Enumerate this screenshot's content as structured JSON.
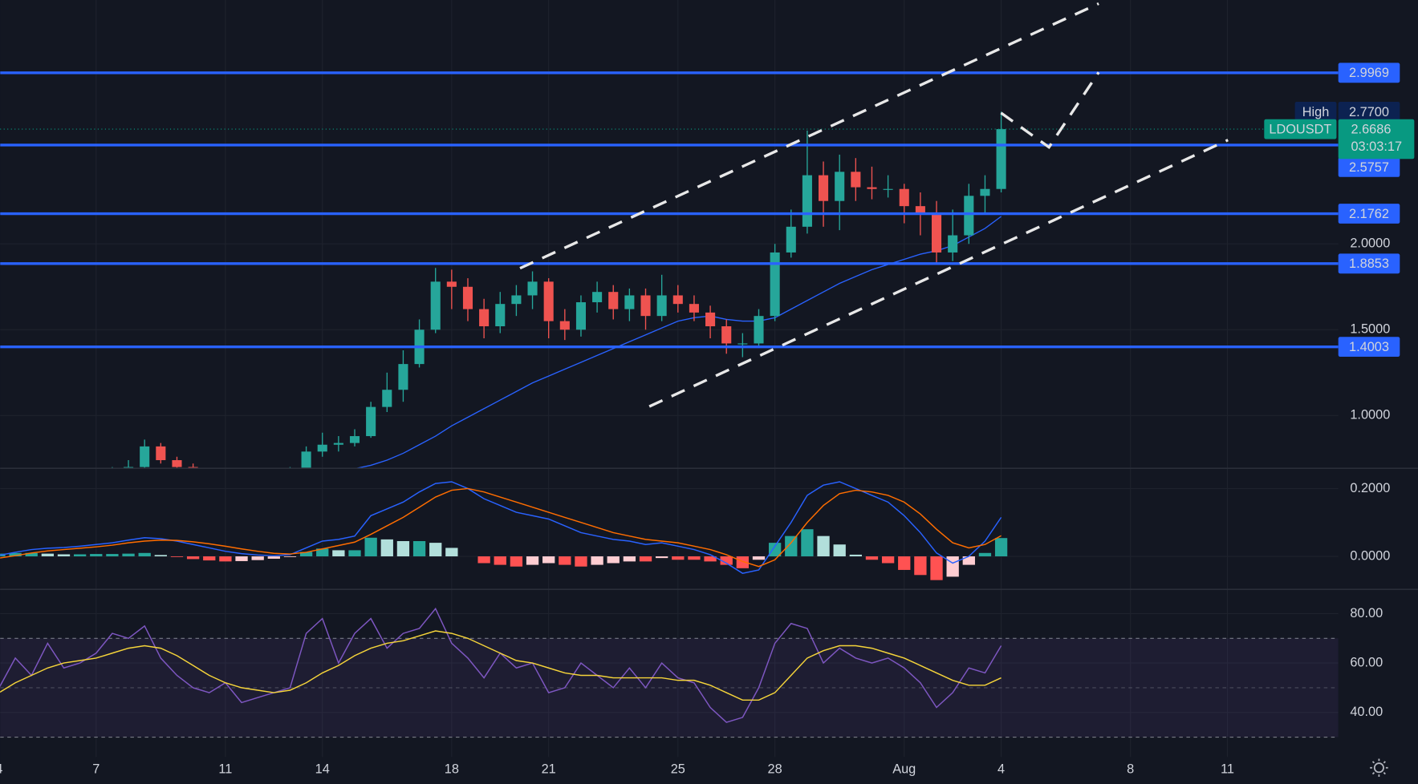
{
  "chart_data": [
    {
      "type": "candlestick",
      "symbol": "LDOUSDT",
      "x": [
        4,
        4.5,
        5,
        5.5,
        6,
        6.5,
        7,
        7.5,
        8,
        8.5,
        9,
        9.5,
        10,
        10.5,
        11,
        11.5,
        12,
        12.5,
        13,
        13.5,
        14,
        14.5,
        15,
        15.5,
        16,
        16.5,
        17,
        17.5,
        18,
        18.5,
        19,
        19.5,
        20,
        20.5,
        21,
        21.5,
        22,
        22.5,
        23,
        23.5,
        24,
        24.5,
        25,
        25.5,
        26,
        26.5,
        27,
        27.5,
        28,
        28.5,
        29,
        29.5,
        30,
        30.5,
        31,
        31.5,
        32,
        32.5,
        33,
        33.5,
        34,
        34.5,
        35
      ],
      "open": [
        0.61,
        0.62,
        0.63,
        0.61,
        0.64,
        0.63,
        0.66,
        0.65,
        0.68,
        0.7,
        0.82,
        0.74,
        0.7,
        0.66,
        0.64,
        0.62,
        0.6,
        0.62,
        0.63,
        0.66,
        0.79,
        0.83,
        0.84,
        0.88,
        1.05,
        1.15,
        1.3,
        1.5,
        1.78,
        1.75,
        1.62,
        1.52,
        1.65,
        1.7,
        1.78,
        1.55,
        1.5,
        1.66,
        1.72,
        1.62,
        1.7,
        1.58,
        1.7,
        1.65,
        1.6,
        1.52,
        1.42,
        1.42,
        1.58,
        1.95,
        2.1,
        2.4,
        2.25,
        2.42,
        2.33,
        2.32,
        2.32,
        2.22,
        2.18,
        1.95,
        2.05,
        2.28,
        2.32
      ],
      "high": [
        0.64,
        0.65,
        0.64,
        0.66,
        0.66,
        0.68,
        0.68,
        0.7,
        0.74,
        0.86,
        0.84,
        0.76,
        0.72,
        0.68,
        0.66,
        0.64,
        0.64,
        0.65,
        0.7,
        0.82,
        0.9,
        0.88,
        0.92,
        1.08,
        1.25,
        1.38,
        1.56,
        1.86,
        1.85,
        1.8,
        1.68,
        1.72,
        1.76,
        1.84,
        1.8,
        1.62,
        1.7,
        1.78,
        1.76,
        1.74,
        1.74,
        1.82,
        1.76,
        1.7,
        1.64,
        1.56,
        1.48,
        1.62,
        2.0,
        2.2,
        2.66,
        2.48,
        2.52,
        2.5,
        2.45,
        2.4,
        2.35,
        2.3,
        2.25,
        2.2,
        2.35,
        2.4,
        2.77
      ],
      "low": [
        0.59,
        0.6,
        0.59,
        0.6,
        0.61,
        0.62,
        0.63,
        0.64,
        0.67,
        0.69,
        0.72,
        0.68,
        0.64,
        0.62,
        0.6,
        0.58,
        0.58,
        0.6,
        0.62,
        0.65,
        0.76,
        0.79,
        0.82,
        0.87,
        1.02,
        1.08,
        1.28,
        1.48,
        1.62,
        1.55,
        1.45,
        1.48,
        1.58,
        1.62,
        1.45,
        1.44,
        1.46,
        1.6,
        1.56,
        1.55,
        1.5,
        1.55,
        1.6,
        1.55,
        1.45,
        1.36,
        1.34,
        1.4,
        1.55,
        1.92,
        2.06,
        2.1,
        2.08,
        2.25,
        2.26,
        2.27,
        2.12,
        2.05,
        1.88,
        1.9,
        2.0,
        2.18,
        2.3
      ],
      "close": [
        0.62,
        0.63,
        0.61,
        0.64,
        0.63,
        0.66,
        0.65,
        0.68,
        0.7,
        0.82,
        0.74,
        0.7,
        0.66,
        0.64,
        0.62,
        0.6,
        0.62,
        0.63,
        0.66,
        0.79,
        0.83,
        0.84,
        0.88,
        1.05,
        1.15,
        1.3,
        1.5,
        1.78,
        1.75,
        1.62,
        1.52,
        1.65,
        1.7,
        1.78,
        1.55,
        1.5,
        1.66,
        1.72,
        1.62,
        1.7,
        1.58,
        1.7,
        1.65,
        1.6,
        1.52,
        1.42,
        1.42,
        1.58,
        1.95,
        2.1,
        2.4,
        2.25,
        2.42,
        2.33,
        2.32,
        2.32,
        2.22,
        2.18,
        1.95,
        2.05,
        2.28,
        2.32,
        2.6686
      ],
      "ma_values": [
        0.6,
        0.6,
        0.61,
        0.61,
        0.61,
        0.62,
        0.62,
        0.63,
        0.63,
        0.63,
        0.63,
        0.63,
        0.63,
        0.63,
        0.63,
        0.63,
        0.64,
        0.64,
        0.65,
        0.66,
        0.67,
        0.68,
        0.69,
        0.71,
        0.74,
        0.78,
        0.83,
        0.88,
        0.94,
        0.99,
        1.04,
        1.09,
        1.14,
        1.19,
        1.23,
        1.27,
        1.31,
        1.35,
        1.39,
        1.43,
        1.47,
        1.51,
        1.55,
        1.57,
        1.58,
        1.56,
        1.55,
        1.55,
        1.57,
        1.62,
        1.67,
        1.72,
        1.77,
        1.81,
        1.85,
        1.88,
        1.91,
        1.94,
        1.96,
        1.99,
        2.04,
        2.09,
        2.16
      ],
      "ma_color": "#2962ff",
      "up_color": "#26a69a",
      "down_color": "#ef5350",
      "levels": [
        2.9969,
        2.5757,
        2.1762,
        1.8853,
        1.4003
      ],
      "level_color": "#2962ff",
      "last_price": 2.6686,
      "countdown": "03:03:17",
      "last_color": "#089981",
      "high_label": "High",
      "high_value": {
        "value": 2.77,
        "label": "2.7700"
      },
      "xlim": [
        4.03,
        45.43
      ],
      "ylim": [
        0.695,
        3.421
      ],
      "xticks": [
        4,
        7,
        11,
        14,
        18,
        21,
        25,
        28,
        {
          "value": 32,
          "label": "Aug"
        },
        {
          "value": 35,
          "label": "4"
        },
        {
          "value": 39,
          "label": "8"
        },
        {
          "value": 42,
          "label": "11"
        }
      ],
      "yticks": [
        {
          "value": 1,
          "label": "1.0000"
        },
        {
          "value": 1.5,
          "label": "1.5000"
        },
        {
          "value": 2,
          "label": "2.0000"
        }
      ],
      "grid": true
    },
    {
      "type": "macd",
      "macd": [
        0.003,
        0.012,
        0.02,
        0.024,
        0.026,
        0.03,
        0.035,
        0.04,
        0.048,
        0.055,
        0.052,
        0.045,
        0.035,
        0.025,
        0.015,
        0.008,
        0.004,
        0.002,
        0.005,
        0.025,
        0.045,
        0.05,
        0.06,
        0.12,
        0.14,
        0.16,
        0.19,
        0.215,
        0.22,
        0.2,
        0.17,
        0.15,
        0.13,
        0.12,
        0.11,
        0.09,
        0.07,
        0.06,
        0.05,
        0.045,
        0.035,
        0.04,
        0.03,
        0.02,
        0.005,
        -0.02,
        -0.05,
        -0.04,
        0.03,
        0.1,
        0.18,
        0.21,
        0.22,
        0.2,
        0.18,
        0.16,
        0.12,
        0.07,
        0.01,
        -0.02,
        0.0,
        0.045,
        0.115
      ],
      "signal": [
        -0.005,
        0.002,
        0.01,
        0.016,
        0.02,
        0.024,
        0.028,
        0.033,
        0.04,
        0.045,
        0.048,
        0.047,
        0.043,
        0.037,
        0.03,
        0.022,
        0.015,
        0.009,
        0.007,
        0.012,
        0.022,
        0.032,
        0.042,
        0.065,
        0.09,
        0.115,
        0.145,
        0.175,
        0.195,
        0.2,
        0.19,
        0.175,
        0.16,
        0.145,
        0.13,
        0.115,
        0.1,
        0.085,
        0.07,
        0.06,
        0.05,
        0.045,
        0.04,
        0.03,
        0.02,
        0.005,
        -0.015,
        -0.03,
        -0.01,
        0.04,
        0.1,
        0.15,
        0.185,
        0.195,
        0.19,
        0.18,
        0.16,
        0.125,
        0.08,
        0.04,
        0.025,
        0.035,
        0.061
      ],
      "histogram": [
        0.008,
        0.01,
        0.01,
        0.008,
        0.006,
        0.006,
        0.007,
        0.007,
        0.008,
        0.01,
        0.004,
        -0.002,
        -0.008,
        -0.012,
        -0.015,
        -0.014,
        -0.011,
        -0.007,
        -0.002,
        0.013,
        0.023,
        0.018,
        0.018,
        0.055,
        0.05,
        0.045,
        0.045,
        0.04,
        0.025,
        0.0,
        -0.02,
        -0.025,
        -0.03,
        -0.025,
        -0.02,
        -0.025,
        -0.03,
        -0.025,
        -0.02,
        -0.015,
        -0.015,
        -0.005,
        -0.01,
        -0.01,
        -0.015,
        -0.025,
        -0.035,
        -0.01,
        0.04,
        0.06,
        0.08,
        0.06,
        0.035,
        0.005,
        -0.01,
        -0.02,
        -0.04,
        -0.055,
        -0.07,
        -0.06,
        -0.025,
        0.01,
        0.054
      ],
      "macd_color": "#2962ff",
      "signal_color": "#ff6d00",
      "hist_colors": [
        "#26a69a",
        "#b2dfdb",
        "#ff5252",
        "#ffcdd2"
      ],
      "ylim": [
        -0.096,
        0.261
      ],
      "yticks": [
        {
          "value": 0.2,
          "label": "0.2000"
        },
        {
          "value": 0,
          "label": "0.0000"
        }
      ]
    },
    {
      "type": "rsi",
      "rsi": [
        50,
        62,
        55,
        68,
        58,
        60,
        64,
        72,
        70,
        75,
        62,
        55,
        50,
        48,
        52,
        44,
        46,
        48,
        50,
        72,
        78,
        60,
        72,
        78,
        66,
        72,
        74,
        82,
        68,
        62,
        54,
        64,
        58,
        60,
        48,
        50,
        60,
        55,
        50,
        58,
        50,
        60,
        54,
        52,
        42,
        36,
        38,
        50,
        68,
        76,
        74,
        60,
        66,
        62,
        60,
        62,
        58,
        52,
        42,
        48,
        58,
        56,
        67
      ],
      "rsi_ma": [
        48,
        52,
        55,
        58,
        60,
        61,
        62,
        64,
        66,
        67,
        66,
        63,
        59,
        55,
        52,
        50,
        49,
        48,
        49,
        52,
        56,
        59,
        63,
        66,
        68,
        69,
        71,
        73,
        72,
        70,
        67,
        64,
        61,
        60,
        58,
        56,
        55,
        55,
        54,
        54,
        54,
        54,
        53,
        53,
        51,
        48,
        45,
        45,
        48,
        55,
        62,
        65,
        67,
        67,
        66,
        64,
        62,
        59,
        56,
        53,
        51,
        51,
        54
      ],
      "rsi_color": "#7e57c2",
      "ma_color": "#f5d43a",
      "band": [
        70,
        30
      ],
      "midline": 50,
      "ylim": [
        22,
        90
      ],
      "yticks": [
        {
          "value": 80,
          "label": "80.00"
        },
        {
          "value": 60,
          "label": "60.00"
        },
        {
          "value": 40,
          "label": "40.00"
        }
      ]
    }
  ]
}
